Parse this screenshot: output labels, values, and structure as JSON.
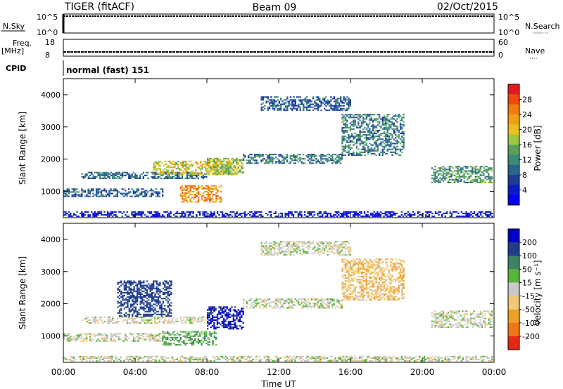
{
  "header": {
    "title": "TIGER (fitACF)",
    "beam": "Beam 09",
    "date": "02/Oct/2015"
  },
  "nsky": {
    "left_label": "N.Sky",
    "left_ticks": [
      "10^5",
      "10^0"
    ],
    "right_ticks": [
      "10^5",
      "10^0"
    ],
    "right_label": "N.Search",
    "right_dots": "········"
  },
  "freq": {
    "left_label_1": "Freq.",
    "left_label_2": "[MHz]",
    "left_ticks": [
      "18",
      "8"
    ],
    "right_ticks": [
      "60",
      "0"
    ],
    "right_label": "Nave",
    "right_dots": "····"
  },
  "cpid": {
    "label": "CPID",
    "text": "normal (fast) 151"
  },
  "chart_data": [
    {
      "type": "heatmap",
      "panel": "power",
      "ylabel": "Slant Range [km]",
      "ylim": [
        180,
        4500
      ],
      "yticks": [
        1000,
        2000,
        3000,
        4000
      ],
      "xlim": [
        0,
        24
      ],
      "xticks": [
        "00:00",
        "04:00",
        "08:00",
        "12:00",
        "16:00",
        "20:00",
        "00:00"
      ],
      "colorbar": {
        "label": "Power [dB]",
        "ticks": [
          "28",
          "24",
          "20",
          "16",
          "12",
          "8",
          "4"
        ],
        "colors": [
          "#e41a1a",
          "#f04a10",
          "#f07a10",
          "#f0a010",
          "#e8c020",
          "#9cc840",
          "#5aa05a",
          "#3c8c78",
          "#28648c",
          "#1c3c96",
          "#0a1cc8",
          "#0000f0"
        ]
      },
      "regions": [
        {
          "t": [
            0.0,
            24.0
          ],
          "r": [
            200,
            360
          ],
          "v": 5
        },
        {
          "t": [
            0.0,
            5.5
          ],
          "r": [
            820,
            1060
          ],
          "v": 10
        },
        {
          "t": [
            1.0,
            8.0
          ],
          "r": [
            1380,
            1600
          ],
          "v": 11
        },
        {
          "t": [
            5.0,
            9.5
          ],
          "r": [
            1500,
            1950
          ],
          "v": 20
        },
        {
          "t": [
            6.5,
            8.8
          ],
          "r": [
            650,
            1150
          ],
          "v": 25
        },
        {
          "t": [
            8.0,
            10.0
          ],
          "r": [
            1500,
            2000
          ],
          "v": 18
        },
        {
          "t": [
            10.0,
            15.5
          ],
          "r": [
            1850,
            2150
          ],
          "v": 12
        },
        {
          "t": [
            15.5,
            19.0
          ],
          "r": [
            2100,
            3400
          ],
          "v": 12
        },
        {
          "t": [
            20.5,
            24.0
          ],
          "r": [
            1250,
            1750
          ],
          "v": 14
        },
        {
          "t": [
            11.0,
            16.0
          ],
          "r": [
            3500,
            3950
          ],
          "v": 10
        }
      ]
    },
    {
      "type": "heatmap",
      "panel": "velocity",
      "ylabel": "Slant Range [km]",
      "ylim": [
        180,
        4500
      ],
      "yticks": [
        1000,
        2000,
        3000,
        4000
      ],
      "xlim": [
        0,
        24
      ],
      "xticks": [
        "00:00",
        "04:00",
        "08:00",
        "12:00",
        "16:00",
        "20:00",
        "00:00"
      ],
      "xlabel": "Time UT",
      "colorbar": {
        "label": "Velocity [m s⁻¹]",
        "ticks": [
          "200",
          "100",
          "50",
          "15",
          "-15",
          "-50",
          "-100",
          "-200"
        ],
        "colors": [
          "#0000c8",
          "#1e3c8c",
          "#3c8264",
          "#5ab43c",
          "#c8c8c8",
          "#f0c878",
          "#f0a028",
          "#f07814",
          "#e62814"
        ]
      },
      "regions": [
        {
          "t": [
            0.0,
            24.0
          ],
          "r": [
            200,
            360
          ],
          "v": 0
        },
        {
          "t": [
            0.0,
            5.5
          ],
          "r": [
            820,
            1060
          ],
          "v": 0
        },
        {
          "t": [
            1.0,
            8.0
          ],
          "r": [
            1380,
            1600
          ],
          "v": 0
        },
        {
          "t": [
            3.0,
            6.0
          ],
          "r": [
            1600,
            2700
          ],
          "v": 150
        },
        {
          "t": [
            5.5,
            8.5
          ],
          "r": [
            700,
            1150
          ],
          "v": 40
        },
        {
          "t": [
            8.0,
            10.0
          ],
          "r": [
            1200,
            1900
          ],
          "v": 210
        },
        {
          "t": [
            10.0,
            15.5
          ],
          "r": [
            1850,
            2150
          ],
          "v": 0
        },
        {
          "t": [
            15.5,
            19.0
          ],
          "r": [
            2100,
            3400
          ],
          "v": -40
        },
        {
          "t": [
            20.5,
            24.0
          ],
          "r": [
            1250,
            1750
          ],
          "v": 0
        },
        {
          "t": [
            11.0,
            16.0
          ],
          "r": [
            3500,
            3950
          ],
          "v": 0
        }
      ]
    }
  ]
}
